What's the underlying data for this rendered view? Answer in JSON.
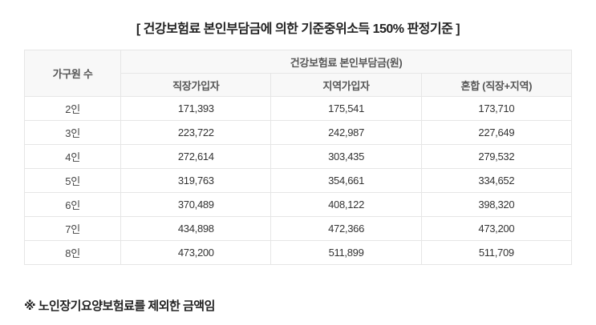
{
  "title": "[ 건강보험료 본인부담금에 의한 기준중위소득 150% 판정기준 ]",
  "table": {
    "header": {
      "household_col": "가구원 수",
      "group_col": "건강보험료 본인부담금(원)",
      "sub_cols": [
        "직장가입자",
        "지역가입자",
        "혼합 (직장+지역)"
      ]
    },
    "rows": [
      {
        "household": "2인",
        "values": [
          "171,393",
          "175,541",
          "173,710"
        ]
      },
      {
        "household": "3인",
        "values": [
          "223,722",
          "242,987",
          "227,649"
        ]
      },
      {
        "household": "4인",
        "values": [
          "272,614",
          "303,435",
          "279,532"
        ]
      },
      {
        "household": "5인",
        "values": [
          "319,763",
          "354,661",
          "334,652"
        ]
      },
      {
        "household": "6인",
        "values": [
          "370,489",
          "408,122",
          "398,320"
        ]
      },
      {
        "household": "7인",
        "values": [
          "434,898",
          "472,366",
          "473,200"
        ]
      },
      {
        "household": "8인",
        "values": [
          "473,200",
          "511,899",
          "511,709"
        ]
      }
    ]
  },
  "footnote": "※ 노인장기요양보험료를 제외한 금액임"
}
